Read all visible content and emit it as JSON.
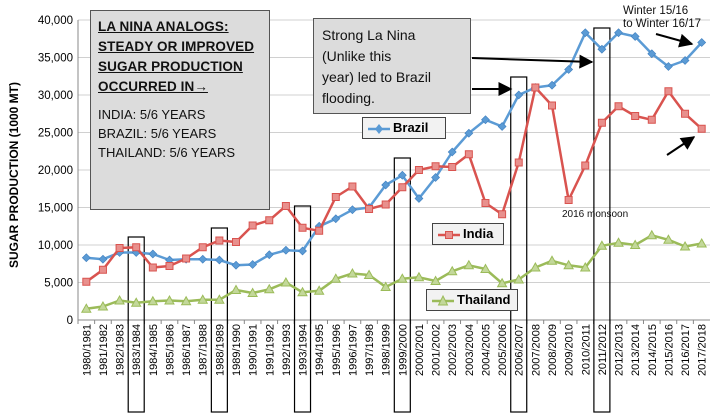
{
  "chart_data": {
    "type": "line",
    "ylabel": "SUGAR PRODUCTION  (1000 MT)",
    "ylim": [
      0,
      40000
    ],
    "yticks": [
      "0",
      "5,000",
      "10,000",
      "15,000",
      "20,000",
      "25,000",
      "30,000",
      "35,000",
      "40,000"
    ],
    "grid": true,
    "categories": [
      "1980/1981",
      "1981/1982",
      "1982/1983",
      "1983/1984",
      "1984/1985",
      "1985/1986",
      "1986/1987",
      "1987/1988",
      "1988/1989",
      "1989/1990",
      "1990/1991",
      "1991/1992",
      "1992/1993",
      "1993/1994",
      "1994/1995",
      "1995/1996",
      "1996/1997",
      "1997/1998",
      "1998/1999",
      "1999/2000",
      "2000/2001",
      "2001/2002",
      "2002/2003",
      "2003/2004",
      "2004/2005",
      "2005/2006",
      "2006/2007",
      "2007/2008",
      "2008/2009",
      "2009/2010",
      "2010/2011",
      "2011/2012",
      "2012/2013",
      "2013/2014",
      "2014/2015",
      "2015/2016",
      "2016/2017",
      "2017/2018"
    ],
    "series": [
      {
        "name": "Brazil",
        "color": "#5b9bd5",
        "marker": "diamond",
        "values": [
          8300,
          8100,
          9000,
          9000,
          8800,
          8000,
          8100,
          8100,
          8000,
          7300,
          7400,
          8700,
          9300,
          9200,
          12500,
          13500,
          14700,
          15000,
          18000,
          19300,
          16200,
          19000,
          22400,
          24900,
          26700,
          25800,
          30000,
          31000,
          31300,
          33400,
          38300,
          36100,
          38300,
          37800,
          35500,
          33800,
          34600,
          37000
        ]
      },
      {
        "name": "India",
        "color": "#d9534f",
        "marker": "square",
        "values": [
          5100,
          6700,
          9600,
          9700,
          7000,
          7200,
          8200,
          9700,
          10600,
          10400,
          12600,
          13300,
          15200,
          12300,
          11900,
          16400,
          17800,
          14800,
          15400,
          17700,
          20000,
          20500,
          20400,
          22100,
          15600,
          14100,
          21000,
          31000,
          28600,
          16000,
          20600,
          26300,
          28500,
          27200,
          26700,
          30500,
          27500,
          25500
        ]
      },
      {
        "name": "Thailand",
        "color": "#9bbb59",
        "marker": "triangle",
        "values": [
          1500,
          1800,
          2600,
          2300,
          2500,
          2600,
          2500,
          2700,
          2700,
          4000,
          3600,
          4100,
          5000,
          3700,
          3900,
          5500,
          6200,
          6000,
          4400,
          5500,
          5700,
          5200,
          6500,
          7300,
          6800,
          4900,
          5400,
          7000,
          7900,
          7300,
          7000,
          9900,
          10300,
          10000,
          11300,
          10700,
          9800,
          10200
        ]
      }
    ],
    "highlighted_periods": [
      "1983/1984",
      "1988/1989",
      "1993/1994",
      "1999/2000",
      "2006/2007",
      "2011/2012"
    ]
  },
  "annotations": {
    "main_box": {
      "title_lines": [
        "LA NINA ANALOGS:",
        "STEADY OR IMPROVED",
        "SUGAR PRODUCTION",
        "OCCURRED IN→"
      ],
      "stats": [
        "INDIA: 5/6 YEARS",
        "BRAZIL: 5/6 YEARS",
        "THAILAND: 5/6 YEARS"
      ]
    },
    "strong_box": [
      "Strong La Nina",
      "(Unlike this",
      "year) led to Brazil",
      "flooding."
    ],
    "winter_note": [
      "Winter 15/16",
      "to Winter 16/17"
    ],
    "monsoon_note": "2016 monsoon"
  }
}
